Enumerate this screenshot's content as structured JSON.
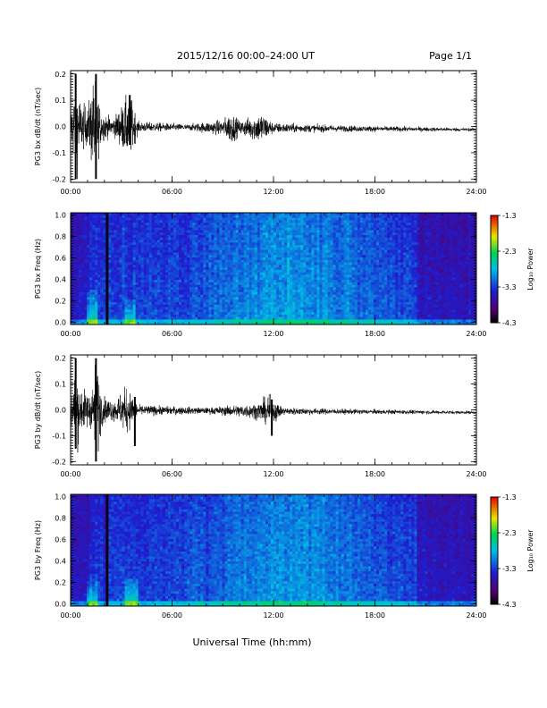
{
  "header": {
    "title": "2015/12/16  00:00–24:00 UT",
    "page": "Page 1/1"
  },
  "footer": {
    "xlabel": "Universal Time (hh:mm)"
  },
  "colorbar": {
    "ticks": [
      "-1.3",
      "-2.3",
      "-3.3",
      "-4.3"
    ],
    "label": "Log₁₀ Power"
  },
  "chart_data": [
    {
      "type": "line",
      "ylabel": "PG3 bx dB/dt (nT/sec)",
      "ylim": [
        -0.2,
        0.2
      ],
      "yticks": [
        "0.2",
        "0.1",
        "0.0",
        "-0.1",
        "-0.2"
      ],
      "xticks": [
        "00:00",
        "06:00",
        "12:00",
        "18:00",
        "24:00"
      ],
      "xlim_hours": [
        0,
        24
      ],
      "envelope": [
        {
          "t": 0.0,
          "amp": 0.06
        },
        {
          "t": 0.3,
          "amp": 0.2
        },
        {
          "t": 0.6,
          "amp": 0.1
        },
        {
          "t": 1.0,
          "amp": 0.07
        },
        {
          "t": 1.4,
          "amp": 0.2
        },
        {
          "t": 1.8,
          "amp": 0.06
        },
        {
          "t": 2.5,
          "amp": 0.03
        },
        {
          "t": 3.5,
          "amp": 0.13
        },
        {
          "t": 4.0,
          "amp": 0.02
        },
        {
          "t": 7.0,
          "amp": 0.012
        },
        {
          "t": 9.0,
          "amp": 0.03
        },
        {
          "t": 9.5,
          "amp": 0.06
        },
        {
          "t": 10.0,
          "amp": 0.025
        },
        {
          "t": 11.3,
          "amp": 0.06
        },
        {
          "t": 12.0,
          "amp": 0.02
        },
        {
          "t": 14.0,
          "amp": 0.015
        },
        {
          "t": 16.0,
          "amp": 0.012
        },
        {
          "t": 24.0,
          "amp": 0.006
        }
      ],
      "spikes": [
        {
          "t": 0.3,
          "min": -0.2,
          "max": 0.2
        },
        {
          "t": 1.5,
          "min": -0.2,
          "max": 0.2
        },
        {
          "t": 3.5,
          "min": -0.07,
          "max": 0.12
        }
      ],
      "baseline_drift": [
        0.0,
        -0.012
      ]
    },
    {
      "type": "heatmap",
      "ylabel": "PG3 bx Freq (Hz)",
      "ylim": [
        0.0,
        1.0
      ],
      "yticks": [
        "1.0",
        "0.8",
        "0.6",
        "0.4",
        "0.2",
        "0.0"
      ],
      "xticks": [
        "00:00",
        "06:00",
        "12:00",
        "18:00",
        "24:00"
      ],
      "color_range": [
        -4.3,
        -1.3
      ],
      "features": [
        {
          "kind": "dark_line",
          "t": 2.1
        },
        {
          "kind": "low_freq_burst",
          "t": 1.3,
          "fmax": 0.35
        },
        {
          "kind": "low_freq_burst",
          "t": 3.5,
          "fmax": 0.25
        },
        {
          "kind": "ground_band",
          "fmax": 0.04
        }
      ]
    },
    {
      "type": "line",
      "ylabel": "PG3 by dB/dt (nT/sec)",
      "ylim": [
        -0.2,
        0.2
      ],
      "yticks": [
        "0.2",
        "0.1",
        "0.0",
        "-0.1",
        "-0.2"
      ],
      "xticks": [
        "00:00",
        "06:00",
        "12:00",
        "18:00",
        "24:00"
      ],
      "xlim_hours": [
        0,
        24
      ],
      "envelope": [
        {
          "t": 0.0,
          "amp": 0.05
        },
        {
          "t": 0.3,
          "amp": 0.15
        },
        {
          "t": 0.7,
          "amp": 0.08
        },
        {
          "t": 1.2,
          "amp": 0.07
        },
        {
          "t": 1.5,
          "amp": 0.2
        },
        {
          "t": 1.9,
          "amp": 0.05
        },
        {
          "t": 2.6,
          "amp": 0.04
        },
        {
          "t": 3.3,
          "amp": 0.09
        },
        {
          "t": 4.0,
          "amp": 0.02
        },
        {
          "t": 8.0,
          "amp": 0.012
        },
        {
          "t": 11.0,
          "amp": 0.03
        },
        {
          "t": 11.8,
          "amp": 0.06
        },
        {
          "t": 12.5,
          "amp": 0.015
        },
        {
          "t": 16.0,
          "amp": 0.01
        },
        {
          "t": 24.0,
          "amp": 0.006
        }
      ],
      "spikes": [
        {
          "t": 0.3,
          "min": -0.15,
          "max": 0.2
        },
        {
          "t": 1.5,
          "min": -0.2,
          "max": 0.2
        },
        {
          "t": 3.8,
          "min": -0.14,
          "max": 0.05
        },
        {
          "t": 11.9,
          "min": -0.1,
          "max": 0.04
        }
      ],
      "baseline_drift": [
        0.0,
        -0.01
      ]
    },
    {
      "type": "heatmap",
      "ylabel": "PG3 by Freq (Hz)",
      "ylim": [
        0.0,
        1.0
      ],
      "yticks": [
        "1.0",
        "0.8",
        "0.6",
        "0.4",
        "0.2",
        "0.0"
      ],
      "xticks": [
        "00:00",
        "06:00",
        "12:00",
        "18:00",
        "24:00"
      ],
      "color_range": [
        -4.3,
        -1.3
      ],
      "features": [
        {
          "kind": "dark_line",
          "t": 2.1
        },
        {
          "kind": "low_freq_burst",
          "t": 1.3,
          "fmax": 0.3
        },
        {
          "kind": "low_freq_burst",
          "t": 3.6,
          "fmax": 0.28
        },
        {
          "kind": "ground_band",
          "fmax": 0.04
        }
      ]
    }
  ]
}
